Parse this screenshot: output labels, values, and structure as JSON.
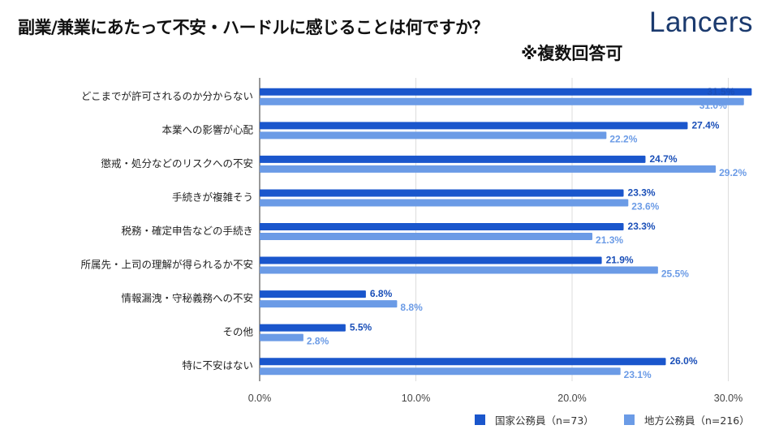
{
  "title": "副業/兼業にあたって不安・ハードルに感じることは何ですか？",
  "note": "※複数回答可",
  "logo": "Lancers",
  "chart_data": {
    "type": "bar",
    "orientation": "horizontal",
    "categories": [
      "どこまでが許可されるのか分からない",
      "本業への影響が心配",
      "懲戒・処分などのリスクへの不安",
      "手続きが複雑そう",
      "税務・確定申告などの手続き",
      "所属先・上司の理解が得られるか不安",
      "情報漏洩・守秘義務への不安",
      "その他",
      "特に不安はない"
    ],
    "series": [
      {
        "name": "国家公務員（n=73）",
        "color": "#1a56cc",
        "label_color": "#1a4fb8",
        "values": [
          31.5,
          27.4,
          24.7,
          23.3,
          23.3,
          21.9,
          6.8,
          5.5,
          26.0
        ]
      },
      {
        "name": "地方公務員（n=216）",
        "color": "#6b9be6",
        "label_color": "#6b9be6",
        "values": [
          31.0,
          22.2,
          29.2,
          23.6,
          21.3,
          25.5,
          8.8,
          2.8,
          23.1
        ]
      }
    ],
    "xticks": [
      "0.0%",
      "10.0%",
      "20.0%",
      "30.0%"
    ],
    "xlim": [
      0,
      30
    ],
    "grid": true,
    "legend": "bottom-right"
  }
}
